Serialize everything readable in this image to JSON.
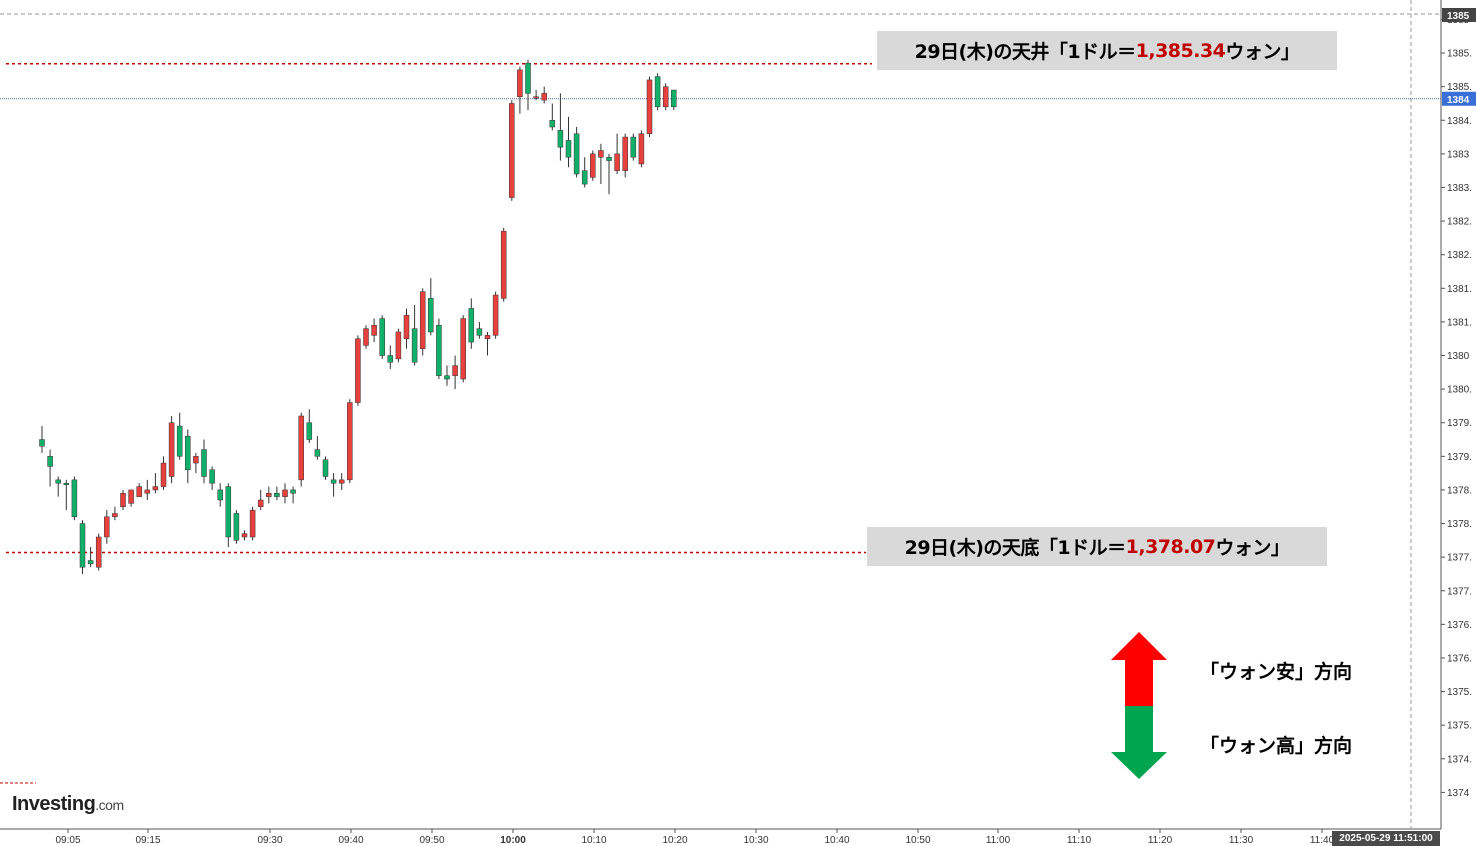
{
  "chart_data": {
    "type": "candlestick",
    "title": "",
    "xlabel": "",
    "ylabel": "",
    "ylim": [
      1374.0,
      1386.2
    ],
    "x_tick_labels": [
      "09:05",
      "09:15",
      "09:30",
      "09:40",
      "09:50",
      "10:00",
      "10:10",
      "10:20",
      "10:30",
      "10:40",
      "10:50",
      "11:00",
      "11:10",
      "11:20",
      "11:30",
      "11:40"
    ],
    "x_tick_bold": "10:00",
    "y_tick_labels": [
      "1385",
      "1385.",
      "1385.",
      "1384.",
      "1383",
      "1383.",
      "1382.",
      "1382.",
      "1381.",
      "1381.",
      "1380",
      "1380.",
      "1379.",
      "1379.",
      "1378.",
      "1378.",
      "1377.",
      "1377.",
      "1376.",
      "1376.",
      "1375.",
      "1375.",
      "1374.",
      "1374"
    ],
    "current_price_label": "1384",
    "top_price_label": "1385",
    "date_label": "2025-05-29 11:51:00",
    "candles": [
      {
        "o": 1379.75,
        "h": 1379.95,
        "l": 1379.55,
        "c": 1379.65
      },
      {
        "o": 1379.5,
        "h": 1379.6,
        "l": 1379.05,
        "c": 1379.35
      },
      {
        "o": 1379.15,
        "h": 1379.2,
        "l": 1378.9,
        "c": 1379.1
      },
      {
        "o": 1379.1,
        "h": 1379.15,
        "l": 1378.7,
        "c": 1379.08
      },
      {
        "o": 1379.15,
        "h": 1379.2,
        "l": 1378.55,
        "c": 1378.6
      },
      {
        "o": 1378.5,
        "h": 1378.55,
        "l": 1377.75,
        "c": 1377.85
      },
      {
        "o": 1377.95,
        "h": 1378.15,
        "l": 1377.85,
        "c": 1377.9
      },
      {
        "o": 1377.85,
        "h": 1378.35,
        "l": 1377.8,
        "c": 1378.3
      },
      {
        "o": 1378.3,
        "h": 1378.7,
        "l": 1378.2,
        "c": 1378.6
      },
      {
        "o": 1378.6,
        "h": 1378.75,
        "l": 1378.55,
        "c": 1378.65
      },
      {
        "o": 1378.75,
        "h": 1379.0,
        "l": 1378.7,
        "c": 1378.95
      },
      {
        "o": 1378.8,
        "h": 1379.0,
        "l": 1378.75,
        "c": 1379.0
      },
      {
        "o": 1378.9,
        "h": 1379.1,
        "l": 1378.9,
        "c": 1379.05
      },
      {
        "o": 1378.95,
        "h": 1379.15,
        "l": 1378.85,
        "c": 1379.0
      },
      {
        "o": 1379.0,
        "h": 1379.25,
        "l": 1378.95,
        "c": 1379.05
      },
      {
        "o": 1379.05,
        "h": 1379.5,
        "l": 1379.0,
        "c": 1379.4
      },
      {
        "o": 1379.2,
        "h": 1380.1,
        "l": 1379.1,
        "c": 1380.0
      },
      {
        "o": 1379.95,
        "h": 1380.15,
        "l": 1379.45,
        "c": 1379.5
      },
      {
        "o": 1379.8,
        "h": 1379.9,
        "l": 1379.1,
        "c": 1379.3
      },
      {
        "o": 1379.4,
        "h": 1379.55,
        "l": 1379.25,
        "c": 1379.5
      },
      {
        "o": 1379.6,
        "h": 1379.75,
        "l": 1379.1,
        "c": 1379.2
      },
      {
        "o": 1379.3,
        "h": 1379.35,
        "l": 1379.0,
        "c": 1379.1
      },
      {
        "o": 1379.0,
        "h": 1379.1,
        "l": 1378.75,
        "c": 1378.85
      },
      {
        "o": 1379.05,
        "h": 1379.1,
        "l": 1378.15,
        "c": 1378.3
      },
      {
        "o": 1378.65,
        "h": 1378.7,
        "l": 1378.2,
        "c": 1378.25
      },
      {
        "o": 1378.3,
        "h": 1378.4,
        "l": 1378.25,
        "c": 1378.35
      },
      {
        "o": 1378.3,
        "h": 1378.75,
        "l": 1378.25,
        "c": 1378.7
      },
      {
        "o": 1378.75,
        "h": 1379.0,
        "l": 1378.7,
        "c": 1378.85
      },
      {
        "o": 1378.9,
        "h": 1379.05,
        "l": 1378.8,
        "c": 1378.95
      },
      {
        "o": 1378.95,
        "h": 1379.05,
        "l": 1378.85,
        "c": 1378.9
      },
      {
        "o": 1378.9,
        "h": 1379.1,
        "l": 1378.8,
        "c": 1379.0
      },
      {
        "o": 1379.0,
        "h": 1379.05,
        "l": 1378.8,
        "c": 1378.95
      },
      {
        "o": 1379.15,
        "h": 1380.15,
        "l": 1379.05,
        "c": 1380.1
      },
      {
        "o": 1380.0,
        "h": 1380.2,
        "l": 1379.7,
        "c": 1379.75
      },
      {
        "o": 1379.6,
        "h": 1379.8,
        "l": 1379.45,
        "c": 1379.5
      },
      {
        "o": 1379.45,
        "h": 1379.5,
        "l": 1379.15,
        "c": 1379.2
      },
      {
        "o": 1379.15,
        "h": 1379.25,
        "l": 1378.9,
        "c": 1379.1
      },
      {
        "o": 1379.1,
        "h": 1379.25,
        "l": 1379.0,
        "c": 1379.15
      },
      {
        "o": 1379.15,
        "h": 1380.35,
        "l": 1379.1,
        "c": 1380.3
      },
      {
        "o": 1380.3,
        "h": 1381.3,
        "l": 1380.25,
        "c": 1381.25
      },
      {
        "o": 1381.15,
        "h": 1381.45,
        "l": 1381.1,
        "c": 1381.4
      },
      {
        "o": 1381.3,
        "h": 1381.55,
        "l": 1381.2,
        "c": 1381.45
      },
      {
        "o": 1381.55,
        "h": 1381.6,
        "l": 1380.95,
        "c": 1381.0
      },
      {
        "o": 1381.0,
        "h": 1381.15,
        "l": 1380.8,
        "c": 1380.9
      },
      {
        "o": 1380.95,
        "h": 1381.4,
        "l": 1380.9,
        "c": 1381.35
      },
      {
        "o": 1381.25,
        "h": 1381.7,
        "l": 1381.1,
        "c": 1381.6
      },
      {
        "o": 1381.4,
        "h": 1381.75,
        "l": 1380.85,
        "c": 1380.9
      },
      {
        "o": 1381.1,
        "h": 1382.0,
        "l": 1381.0,
        "c": 1381.95
      },
      {
        "o": 1381.85,
        "h": 1382.15,
        "l": 1381.3,
        "c": 1381.35
      },
      {
        "o": 1381.45,
        "h": 1381.55,
        "l": 1380.65,
        "c": 1380.7
      },
      {
        "o": 1380.7,
        "h": 1380.85,
        "l": 1380.55,
        "c": 1380.65
      },
      {
        "o": 1380.7,
        "h": 1381.0,
        "l": 1380.5,
        "c": 1380.85
      },
      {
        "o": 1380.65,
        "h": 1381.6,
        "l": 1380.6,
        "c": 1381.55
      },
      {
        "o": 1381.7,
        "h": 1381.85,
        "l": 1381.1,
        "c": 1381.2
      },
      {
        "o": 1381.4,
        "h": 1381.5,
        "l": 1381.25,
        "c": 1381.3
      },
      {
        "o": 1381.25,
        "h": 1381.35,
        "l": 1381.0,
        "c": 1381.3
      },
      {
        "o": 1381.3,
        "h": 1381.95,
        "l": 1381.25,
        "c": 1381.9
      },
      {
        "o": 1381.85,
        "h": 1382.9,
        "l": 1381.8,
        "c": 1382.85
      },
      {
        "o": 1383.35,
        "h": 1384.8,
        "l": 1383.3,
        "c": 1384.75
      },
      {
        "o": 1384.85,
        "h": 1385.3,
        "l": 1384.6,
        "c": 1385.25
      },
      {
        "o": 1385.35,
        "h": 1385.4,
        "l": 1384.65,
        "c": 1384.9
      },
      {
        "o": 1384.85,
        "h": 1384.95,
        "l": 1384.8,
        "c": 1384.85
      },
      {
        "o": 1384.8,
        "h": 1385.0,
        "l": 1384.75,
        "c": 1384.9
      },
      {
        "o": 1384.5,
        "h": 1384.75,
        "l": 1384.35,
        "c": 1384.4
      },
      {
        "o": 1384.35,
        "h": 1384.9,
        "l": 1383.9,
        "c": 1384.1
      },
      {
        "o": 1384.2,
        "h": 1384.55,
        "l": 1383.8,
        "c": 1383.95
      },
      {
        "o": 1384.3,
        "h": 1384.4,
        "l": 1383.65,
        "c": 1383.7
      },
      {
        "o": 1383.75,
        "h": 1383.95,
        "l": 1383.5,
        "c": 1383.55
      },
      {
        "o": 1383.65,
        "h": 1384.05,
        "l": 1383.6,
        "c": 1384.0
      },
      {
        "o": 1383.95,
        "h": 1384.15,
        "l": 1383.55,
        "c": 1384.05
      },
      {
        "o": 1383.95,
        "h": 1384.0,
        "l": 1383.4,
        "c": 1383.9
      },
      {
        "o": 1383.75,
        "h": 1384.3,
        "l": 1383.7,
        "c": 1384.0
      },
      {
        "o": 1383.75,
        "h": 1384.3,
        "l": 1383.65,
        "c": 1384.25
      },
      {
        "o": 1384.25,
        "h": 1384.3,
        "l": 1383.9,
        "c": 1383.95
      },
      {
        "o": 1383.85,
        "h": 1384.35,
        "l": 1383.8,
        "c": 1384.3
      },
      {
        "o": 1384.3,
        "h": 1385.15,
        "l": 1384.25,
        "c": 1385.1
      },
      {
        "o": 1385.15,
        "h": 1385.2,
        "l": 1384.65,
        "c": 1384.7
      },
      {
        "o": 1384.7,
        "h": 1385.05,
        "l": 1384.65,
        "c": 1385.0
      },
      {
        "o": 1384.95,
        "h": 1384.95,
        "l": 1384.65,
        "c": 1384.7
      }
    ],
    "annotations": {
      "top": {
        "price": 1385.34,
        "text_before": "29日(木)の天井「1ドル＝",
        "value": "1,385.34",
        "text_after": "ウォン」"
      },
      "bottom": {
        "price": 1378.07,
        "text_before": "29日(木)の天底「1ドル＝",
        "value": "1,378.07",
        "text_after": "ウォン」"
      }
    },
    "legend": {
      "up_label": "「ウォン安」方向",
      "down_label": "「ウォン高」方向"
    },
    "colors": {
      "up": "#e8403d",
      "down": "#10b06a",
      "marker_line": "#c00000",
      "current_line": "#4a6fa5",
      "arrow_up": "#ff0000",
      "arrow_down": "#00a550"
    }
  },
  "branding": {
    "logo": "Investing",
    "logo_suffix": ".com"
  }
}
